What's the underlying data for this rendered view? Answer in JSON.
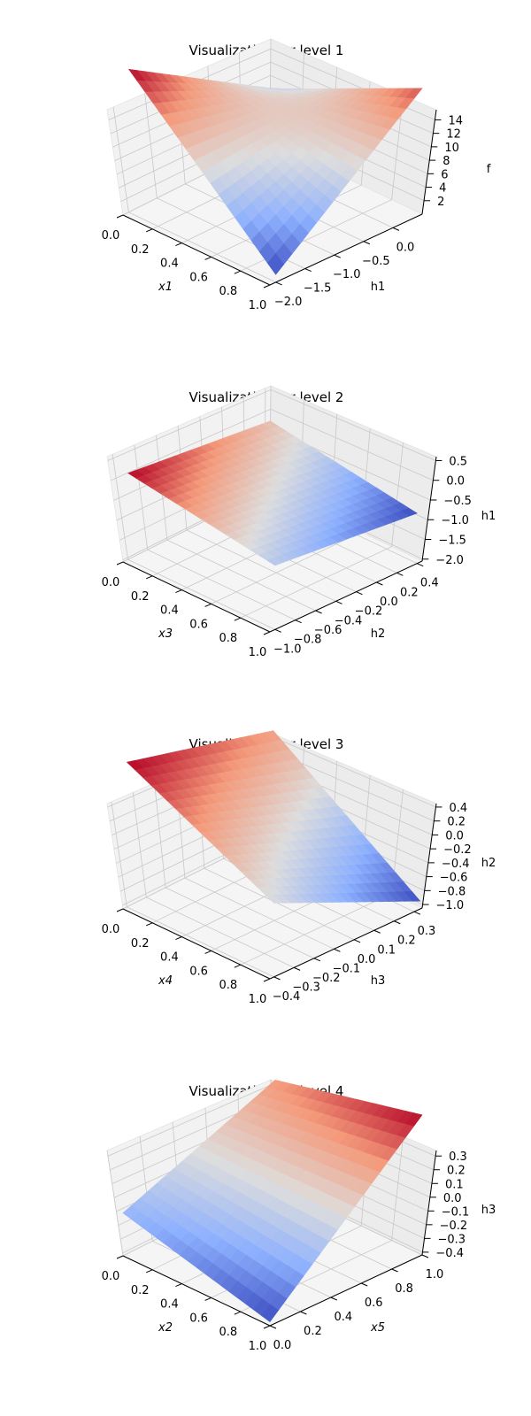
{
  "chart_data": [
    {
      "type": "surface3d",
      "title": "Visualization for level 1",
      "xlabel": "$x1$",
      "ylabel": "h1",
      "zlabel": "f",
      "xlim": [
        0,
        1
      ],
      "ylim": [
        -2.1,
        0.5
      ],
      "zlim": [
        0,
        15.5
      ],
      "x_ticks": [
        "0.0",
        "0.2",
        "0.4",
        "0.6",
        "0.8",
        "1.0"
      ],
      "y_ticks": [
        "−2.0",
        "−1.5",
        "−1.0",
        "−0.5",
        "0.0"
      ],
      "z_ticks": [
        "2",
        "4",
        "6",
        "8",
        "10",
        "12",
        "14"
      ],
      "x_tick_values": [
        0,
        0.2,
        0.4,
        0.6,
        0.8,
        1.0
      ],
      "y_tick_values": [
        -2.0,
        -1.5,
        -1.0,
        -0.5,
        0.0
      ],
      "z_tick_values": [
        2,
        4,
        6,
        8,
        10,
        12,
        14
      ],
      "colormap": "coolwarm",
      "corners": [
        {
          "x": 0,
          "y": -2.0,
          "z": 15.0
        },
        {
          "x": 1,
          "y": -2.0,
          "z": 0.8
        },
        {
          "x": 1,
          "y": 0.5,
          "z": 13.2
        },
        {
          "x": 0,
          "y": 0.5,
          "z": 5.8
        }
      ]
    },
    {
      "type": "surface3d",
      "title": "Visualization for level 2",
      "xlabel": "$x3$",
      "ylabel": "h2",
      "zlabel": "h1",
      "xlim": [
        0,
        1
      ],
      "ylim": [
        -1.05,
        0.45
      ],
      "zlim": [
        -2.05,
        0.6
      ],
      "x_ticks": [
        "0.0",
        "0.2",
        "0.4",
        "0.6",
        "0.8",
        "1.0"
      ],
      "y_ticks": [
        "−1.0",
        "−0.8",
        "−0.6",
        "−0.4",
        "−0.2",
        "0.0",
        "0.2",
        "0.4"
      ],
      "z_ticks": [
        "−2.0",
        "−1.5",
        "−1.0",
        "−0.5",
        "0.0",
        "0.5"
      ],
      "x_tick_values": [
        0,
        0.2,
        0.4,
        0.6,
        0.8,
        1.0
      ],
      "y_tick_values": [
        -1.0,
        -0.8,
        -0.6,
        -0.4,
        -0.2,
        0.0,
        0.2,
        0.4
      ],
      "z_tick_values": [
        -2.0,
        -1.5,
        -1.0,
        -0.5,
        0.0,
        0.5
      ],
      "colormap": "coolwarm",
      "corners": [
        {
          "x": 0,
          "y": -1.0,
          "z": -0.5
        },
        {
          "x": 1,
          "y": -1.0,
          "z": -0.9
        },
        {
          "x": 1,
          "y": 0.4,
          "z": -1.15
        },
        {
          "x": 0,
          "y": 0.4,
          "z": -0.75
        }
      ]
    },
    {
      "type": "surface3d",
      "title": "Visualization for level 3",
      "xlabel": "$x4$",
      "ylabel": "h3",
      "zlabel": "h2",
      "xlim": [
        0,
        1
      ],
      "ylim": [
        -0.42,
        0.34
      ],
      "zlim": [
        -1.05,
        0.45
      ],
      "x_ticks": [
        "0.0",
        "0.2",
        "0.4",
        "0.6",
        "0.8",
        "1.0"
      ],
      "y_ticks": [
        "−0.4",
        "−0.3",
        "−0.2",
        "−0.1",
        "0.0",
        "0.1",
        "0.2",
        "0.3"
      ],
      "z_ticks": [
        "−1.0",
        "−0.8",
        "−0.6",
        "−0.4",
        "−0.2",
        "0.0",
        "0.2",
        "0.4"
      ],
      "x_tick_values": [
        0,
        0.2,
        0.4,
        0.6,
        0.8,
        1.0
      ],
      "y_tick_values": [
        -0.4,
        -0.3,
        -0.2,
        -0.1,
        0.0,
        0.1,
        0.2,
        0.3
      ],
      "z_tick_values": [
        -1.0,
        -0.8,
        -0.6,
        -0.4,
        -0.2,
        0.0,
        0.2,
        0.4
      ],
      "colormap": "coolwarm",
      "corners": [
        {
          "x": 0,
          "y": -0.4,
          "z": 0.42
        },
        {
          "x": 1,
          "y": -0.4,
          "z": -0.3
        },
        {
          "x": 1,
          "y": 0.33,
          "z": -0.97
        },
        {
          "x": 0,
          "y": 0.33,
          "z": 0.05
        }
      ]
    },
    {
      "type": "surface3d",
      "title": "Visualization for level 4",
      "xlabel": "$x2$",
      "ylabel": "$x5$",
      "zlabel": "h3",
      "xlim": [
        0,
        1
      ],
      "ylim": [
        0,
        1
      ],
      "zlim": [
        -0.42,
        0.34
      ],
      "x_ticks": [
        "0.0",
        "0.2",
        "0.4",
        "0.6",
        "0.8",
        "1.0"
      ],
      "y_ticks": [
        "0.0",
        "0.2",
        "0.4",
        "0.6",
        "0.8",
        "1.0"
      ],
      "z_ticks": [
        "−0.4",
        "−0.3",
        "−0.2",
        "−0.1",
        "0.0",
        "0.1",
        "0.2",
        "0.3"
      ],
      "x_tick_values": [
        0,
        0.2,
        0.4,
        0.6,
        0.8,
        1.0
      ],
      "y_tick_values": [
        0,
        0.2,
        0.4,
        0.6,
        0.8,
        1.0
      ],
      "z_tick_values": [
        -0.4,
        -0.3,
        -0.2,
        -0.1,
        0.0,
        0.1,
        0.2,
        0.3
      ],
      "colormap": "coolwarm",
      "corners": [
        {
          "x": 0,
          "y": 0,
          "z": -0.2
        },
        {
          "x": 1,
          "y": 0,
          "z": -0.4
        },
        {
          "x": 1,
          "y": 1,
          "z": 0.3
        },
        {
          "x": 0,
          "y": 1,
          "z": 0.12
        }
      ]
    }
  ]
}
